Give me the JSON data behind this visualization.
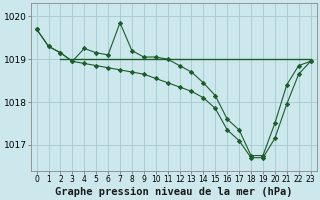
{
  "background_color": "#cce8ec",
  "grid_color": "#aacdd4",
  "line_color": "#1a5c2a",
  "xlabel": "Graphe pression niveau de la mer (hPa)",
  "ylim": [
    1016.4,
    1020.3
  ],
  "xlim": [
    -0.5,
    23.5
  ],
  "yticks": [
    1017,
    1018,
    1019,
    1020
  ],
  "xticks": [
    0,
    1,
    2,
    3,
    4,
    5,
    6,
    7,
    8,
    9,
    10,
    11,
    12,
    13,
    14,
    15,
    16,
    17,
    18,
    19,
    20,
    21,
    22,
    23
  ],
  "line1_x": [
    0,
    1,
    2,
    3,
    4,
    5,
    6,
    7,
    8,
    9,
    10,
    11,
    12,
    13,
    14,
    15,
    16,
    17,
    18,
    19,
    20,
    21,
    22,
    23
  ],
  "line1_y": [
    1019.7,
    1019.3,
    1019.15,
    1018.95,
    1019.25,
    1019.15,
    1019.1,
    1019.85,
    1019.2,
    1019.05,
    1019.05,
    1019.0,
    1018.85,
    1018.7,
    1018.45,
    1018.15,
    1017.6,
    1017.35,
    1016.75,
    1016.75,
    1017.5,
    1018.4,
    1018.85,
    1018.95
  ],
  "line2_x": [
    0,
    1,
    2,
    3,
    4,
    5,
    6,
    7,
    8,
    9,
    10,
    11,
    12,
    13,
    14,
    15,
    16,
    17,
    18,
    19,
    20,
    21,
    22,
    23
  ],
  "line2_y": [
    1019.7,
    1019.3,
    1019.15,
    1018.95,
    1018.9,
    1018.85,
    1018.8,
    1018.75,
    1018.7,
    1018.65,
    1018.55,
    1018.45,
    1018.35,
    1018.25,
    1018.1,
    1017.85,
    1017.35,
    1017.1,
    1016.7,
    1016.7,
    1017.15,
    1017.95,
    1018.65,
    1018.95
  ],
  "flat_line_x": [
    2,
    23
  ],
  "flat_line_y": [
    1019.0,
    1019.0
  ],
  "tick_fontsize": 6,
  "label_fontsize": 7.5
}
